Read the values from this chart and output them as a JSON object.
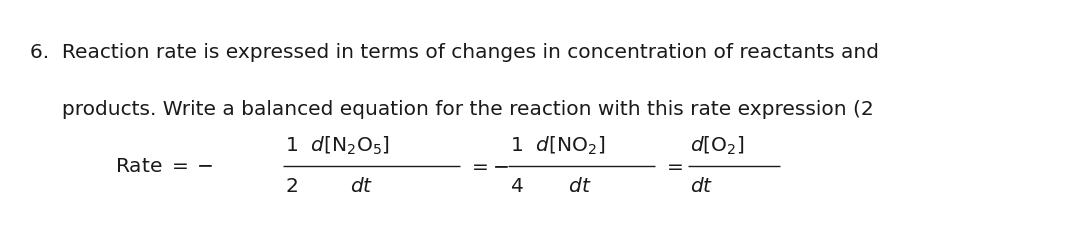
{
  "background_color": "#ffffff",
  "text_color": "#1a1a1a",
  "line1": "6.  Reaction rate is expressed in terms of changes in concentration of reactants and",
  "line2": "     products. Write a balanced equation for the reaction with this rate expression (2",
  "fontsize_text": 14.5,
  "fontsize_math": 14.5,
  "fig_width": 10.8,
  "fig_height": 2.38,
  "dpi": 100
}
